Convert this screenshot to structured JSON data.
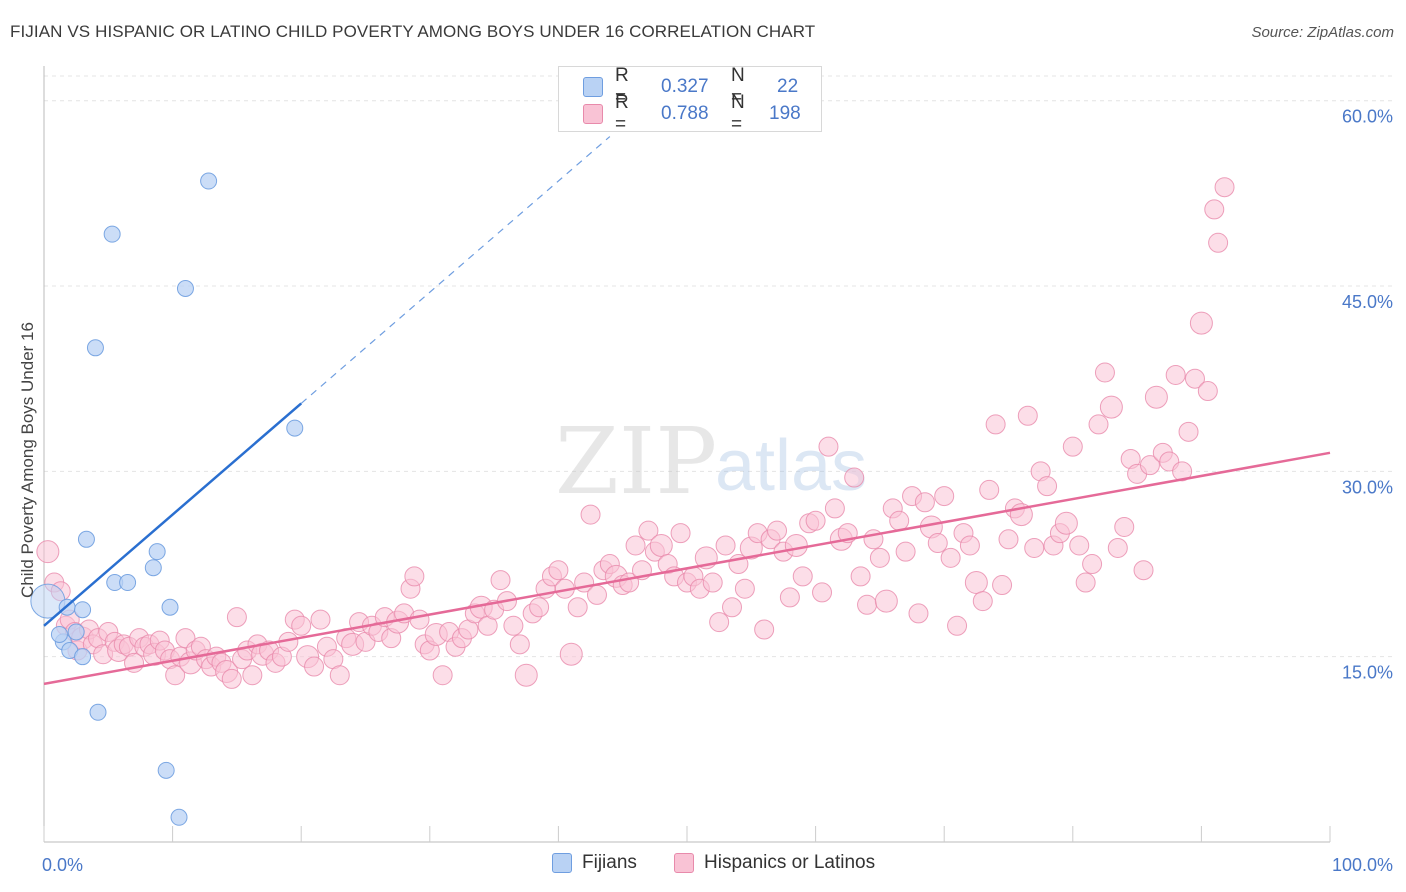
{
  "title": "FIJIAN VS HISPANIC OR LATINO CHILD POVERTY AMONG BOYS UNDER 16 CORRELATION CHART",
  "source": "Source: ZipAtlas.com",
  "watermark": {
    "zip": "ZIP",
    "atlas": "atlas"
  },
  "legend": {
    "rows": [
      {
        "r_label": "R =",
        "r_value": "0.327",
        "n_label": "N =",
        "n_value": "22"
      },
      {
        "r_label": "R =",
        "r_value": "0.788",
        "n_label": "N =",
        "n_value": "198"
      }
    ]
  },
  "bottom_legend": {
    "fijians": "Fijians",
    "hispanics": "Hispanics or Latinos"
  },
  "colors": {
    "fijian_fill": "#b9d2f4",
    "fijian_stroke": "#6f9ee0",
    "fijian_line": "#2a6fd0",
    "hispanic_fill": "#f9c3d5",
    "hispanic_stroke": "#e88aab",
    "hispanic_line": "#e56a98",
    "tick_label": "#4a78c8",
    "grid": "#e4e4e4"
  },
  "chart_data": {
    "type": "scatter",
    "ylabel": "Child Poverty Among Boys Under 16",
    "xlabel": "",
    "xlim": [
      0,
      100
    ],
    "ylim": [
      0,
      62
    ],
    "x_tick_labels": [
      {
        "value": 0,
        "label": "0.0%"
      },
      {
        "value": 100,
        "label": "100.0%"
      }
    ],
    "y_tick_labels": [
      {
        "value": 15,
        "label": "15.0%"
      },
      {
        "value": 30,
        "label": "30.0%"
      },
      {
        "value": 45,
        "label": "45.0%"
      },
      {
        "value": 60,
        "label": "60.0%"
      }
    ],
    "grid": true,
    "series": [
      {
        "name": "Fijians",
        "r": 0.327,
        "n": 22,
        "trend": {
          "x0": 0,
          "y0": 17.5,
          "x1": 20,
          "y1": 35.5,
          "dash_to_x": 44
        },
        "points": [
          [
            0.3,
            19.5
          ],
          [
            1.5,
            16.2
          ],
          [
            1.2,
            16.8
          ],
          [
            1.8,
            19.0
          ],
          [
            2.0,
            15.5
          ],
          [
            2.5,
            17.0
          ],
          [
            3.0,
            18.8
          ],
          [
            3.0,
            15.0
          ],
          [
            3.3,
            24.5
          ],
          [
            4.2,
            10.5
          ],
          [
            5.5,
            21.0
          ],
          [
            5.3,
            49.2
          ],
          [
            4.0,
            40.0
          ],
          [
            6.5,
            21.0
          ],
          [
            8.5,
            22.2
          ],
          [
            8.8,
            23.5
          ],
          [
            9.5,
            5.8
          ],
          [
            9.8,
            19.0
          ],
          [
            10.5,
            2.0
          ],
          [
            11.0,
            44.8
          ],
          [
            12.8,
            53.5
          ],
          [
            19.5,
            33.5
          ]
        ]
      },
      {
        "name": "Hispanics or Latinos",
        "r": 0.788,
        "n": 198,
        "trend": {
          "x0": 0,
          "y0": 12.8,
          "x1": 100,
          "y1": 31.5
        },
        "points": [
          [
            0.3,
            23.5
          ],
          [
            0.8,
            21.0
          ],
          [
            1.3,
            20.3
          ],
          [
            1.7,
            17.5
          ],
          [
            2.0,
            18.0
          ],
          [
            2.4,
            17.0
          ],
          [
            2.6,
            15.5
          ],
          [
            3.0,
            16.5
          ],
          [
            3.5,
            17.2
          ],
          [
            3.8,
            16.0
          ],
          [
            4.2,
            16.5
          ],
          [
            4.6,
            15.2
          ],
          [
            5.0,
            17.0
          ],
          [
            5.5,
            16.2
          ],
          [
            5.8,
            15.5
          ],
          [
            6.2,
            16.0
          ],
          [
            6.6,
            15.8
          ],
          [
            7.0,
            14.5
          ],
          [
            7.4,
            16.5
          ],
          [
            7.8,
            15.8
          ],
          [
            8.2,
            16.0
          ],
          [
            8.6,
            15.2
          ],
          [
            9.0,
            16.3
          ],
          [
            9.4,
            15.5
          ],
          [
            9.8,
            14.8
          ],
          [
            10.2,
            13.5
          ],
          [
            10.6,
            15.0
          ],
          [
            11.0,
            16.5
          ],
          [
            11.4,
            14.5
          ],
          [
            11.8,
            15.5
          ],
          [
            12.2,
            15.8
          ],
          [
            12.6,
            14.8
          ],
          [
            13.0,
            14.2
          ],
          [
            13.4,
            15.0
          ],
          [
            13.8,
            14.5
          ],
          [
            14.2,
            13.8
          ],
          [
            14.6,
            13.2
          ],
          [
            15.0,
            18.2
          ],
          [
            15.4,
            14.8
          ],
          [
            15.8,
            15.5
          ],
          [
            16.2,
            13.5
          ],
          [
            16.6,
            16.0
          ],
          [
            17.0,
            15.2
          ],
          [
            17.5,
            15.5
          ],
          [
            18.0,
            14.5
          ],
          [
            18.5,
            15.0
          ],
          [
            19.0,
            16.2
          ],
          [
            19.5,
            18.0
          ],
          [
            20.0,
            17.5
          ],
          [
            20.5,
            15.0
          ],
          [
            21.0,
            14.2
          ],
          [
            21.5,
            18.0
          ],
          [
            22.0,
            15.8
          ],
          [
            22.5,
            14.8
          ],
          [
            23.0,
            13.5
          ],
          [
            23.5,
            16.5
          ],
          [
            24.0,
            16.0
          ],
          [
            24.5,
            17.8
          ],
          [
            25.0,
            16.2
          ],
          [
            25.5,
            17.5
          ],
          [
            26.0,
            17.0
          ],
          [
            26.5,
            18.2
          ],
          [
            27.0,
            16.5
          ],
          [
            27.5,
            17.8
          ],
          [
            28.0,
            18.5
          ],
          [
            28.5,
            20.5
          ],
          [
            28.8,
            21.5
          ],
          [
            29.2,
            18.0
          ],
          [
            29.6,
            16.0
          ],
          [
            30.0,
            15.5
          ],
          [
            30.5,
            16.8
          ],
          [
            31.0,
            13.5
          ],
          [
            31.5,
            17.0
          ],
          [
            32.0,
            15.8
          ],
          [
            32.5,
            16.5
          ],
          [
            33.0,
            17.2
          ],
          [
            33.5,
            18.5
          ],
          [
            34.0,
            19.0
          ],
          [
            34.5,
            17.5
          ],
          [
            35.0,
            18.8
          ],
          [
            35.5,
            21.2
          ],
          [
            36.0,
            19.5
          ],
          [
            36.5,
            17.5
          ],
          [
            37.0,
            16.0
          ],
          [
            37.5,
            13.5
          ],
          [
            38.0,
            18.5
          ],
          [
            38.5,
            19.0
          ],
          [
            39.0,
            20.5
          ],
          [
            39.5,
            21.5
          ],
          [
            40.0,
            22.0
          ],
          [
            40.5,
            20.5
          ],
          [
            41.0,
            15.2
          ],
          [
            41.5,
            19.0
          ],
          [
            42.0,
            21.0
          ],
          [
            42.5,
            26.5
          ],
          [
            43.0,
            20.0
          ],
          [
            43.5,
            22.0
          ],
          [
            44.0,
            22.5
          ],
          [
            44.5,
            21.5
          ],
          [
            45.0,
            20.8
          ],
          [
            45.5,
            21.0
          ],
          [
            46.0,
            24.0
          ],
          [
            46.5,
            22.0
          ],
          [
            47.0,
            25.2
          ],
          [
            47.5,
            23.5
          ],
          [
            48.0,
            24.0
          ],
          [
            48.5,
            22.5
          ],
          [
            49.0,
            21.5
          ],
          [
            49.5,
            25.0
          ],
          [
            50.0,
            21.0
          ],
          [
            50.5,
            21.5
          ],
          [
            51.0,
            20.5
          ],
          [
            51.5,
            23.0
          ],
          [
            52.0,
            21.0
          ],
          [
            52.5,
            17.8
          ],
          [
            53.0,
            24.0
          ],
          [
            53.5,
            19.0
          ],
          [
            54.0,
            22.5
          ],
          [
            54.5,
            20.5
          ],
          [
            55.0,
            23.8
          ],
          [
            55.5,
            25.0
          ],
          [
            56.0,
            17.2
          ],
          [
            56.5,
            24.5
          ],
          [
            57.0,
            25.2
          ],
          [
            57.5,
            23.5
          ],
          [
            58.0,
            19.8
          ],
          [
            58.5,
            24.0
          ],
          [
            59.0,
            21.5
          ],
          [
            59.5,
            25.8
          ],
          [
            60.0,
            26.0
          ],
          [
            60.5,
            20.2
          ],
          [
            61.0,
            32.0
          ],
          [
            61.5,
            27.0
          ],
          [
            62.0,
            24.5
          ],
          [
            62.5,
            25.0
          ],
          [
            63.0,
            29.5
          ],
          [
            63.5,
            21.5
          ],
          [
            64.0,
            19.2
          ],
          [
            64.5,
            24.5
          ],
          [
            65.0,
            23.0
          ],
          [
            65.5,
            19.5
          ],
          [
            66.0,
            27.0
          ],
          [
            66.5,
            26.0
          ],
          [
            67.0,
            23.5
          ],
          [
            67.5,
            28.0
          ],
          [
            68.0,
            18.5
          ],
          [
            68.5,
            27.5
          ],
          [
            69.0,
            25.5
          ],
          [
            69.5,
            24.2
          ],
          [
            70.0,
            28.0
          ],
          [
            70.5,
            23.0
          ],
          [
            71.0,
            17.5
          ],
          [
            71.5,
            25.0
          ],
          [
            72.0,
            24.0
          ],
          [
            72.5,
            21.0
          ],
          [
            73.0,
            19.5
          ],
          [
            73.5,
            28.5
          ],
          [
            74.0,
            33.8
          ],
          [
            74.5,
            20.8
          ],
          [
            75.0,
            24.5
          ],
          [
            75.5,
            27.0
          ],
          [
            76.0,
            26.5
          ],
          [
            76.5,
            34.5
          ],
          [
            77.0,
            23.8
          ],
          [
            77.5,
            30.0
          ],
          [
            78.0,
            28.8
          ],
          [
            78.5,
            24.0
          ],
          [
            79.0,
            25.0
          ],
          [
            79.5,
            25.8
          ],
          [
            80.0,
            32.0
          ],
          [
            80.5,
            24.0
          ],
          [
            81.0,
            21.0
          ],
          [
            81.5,
            22.5
          ],
          [
            82.0,
            33.8
          ],
          [
            82.5,
            38.0
          ],
          [
            83.0,
            35.2
          ],
          [
            83.5,
            23.8
          ],
          [
            84.0,
            25.5
          ],
          [
            84.5,
            31.0
          ],
          [
            85.0,
            29.8
          ],
          [
            85.5,
            22.0
          ],
          [
            86.0,
            30.5
          ],
          [
            86.5,
            36.0
          ],
          [
            87.0,
            31.5
          ],
          [
            87.5,
            30.8
          ],
          [
            88.0,
            37.8
          ],
          [
            88.5,
            30.0
          ],
          [
            89.0,
            33.2
          ],
          [
            89.5,
            37.5
          ],
          [
            90.0,
            42.0
          ],
          [
            90.5,
            36.5
          ],
          [
            91.0,
            51.2
          ],
          [
            91.3,
            48.5
          ],
          [
            91.8,
            53.0
          ]
        ]
      }
    ]
  }
}
